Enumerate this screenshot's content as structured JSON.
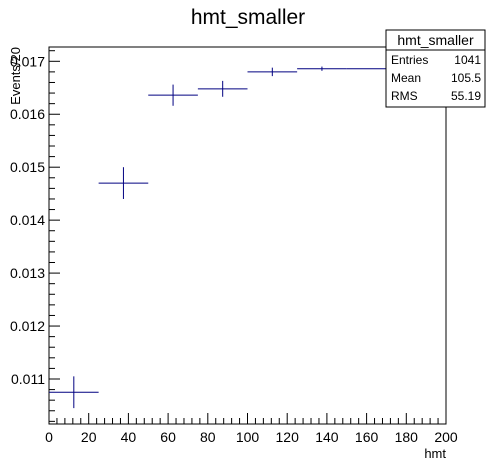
{
  "chart_data": {
    "type": "scatter",
    "title": "hmt_smaller",
    "xlabel": "hmt",
    "ylabel": "Events/20",
    "xlim": [
      0,
      200
    ],
    "ylim": [
      0.01015,
      0.01727
    ],
    "x_ticks": [
      0,
      20,
      40,
      60,
      80,
      100,
      120,
      140,
      160,
      180,
      200
    ],
    "y_ticks": [
      0.011,
      0.012,
      0.013,
      0.014,
      0.015,
      0.016,
      0.017
    ],
    "grid": false,
    "series": [
      {
        "color": "#000080",
        "points": [
          {
            "x": 12.5,
            "xerr": 12.5,
            "y": 0.01075,
            "yerr": 0.0003
          },
          {
            "x": 37.5,
            "xerr": 12.5,
            "y": 0.0147,
            "yerr": 0.0003
          },
          {
            "x": 62.5,
            "xerr": 12.5,
            "y": 0.01636,
            "yerr": 0.0002
          },
          {
            "x": 87.5,
            "xerr": 12.5,
            "y": 0.01648,
            "yerr": 0.00015
          },
          {
            "x": 112.5,
            "xerr": 12.5,
            "y": 0.0168,
            "yerr": 8e-05
          },
          {
            "x": 137.5,
            "xerr": 12.5,
            "y": 0.01686,
            "yerr": 4e-05
          },
          {
            "x": 162.5,
            "xerr": 12.5,
            "y": 0.01686,
            "yerr": 0.0
          }
        ]
      }
    ],
    "stats_box": {
      "title": "hmt_smaller",
      "rows": [
        {
          "label": "Entries",
          "value": "1041"
        },
        {
          "label": "Mean",
          "value": "105.5"
        },
        {
          "label": "RMS",
          "value": "55.19"
        }
      ]
    }
  }
}
